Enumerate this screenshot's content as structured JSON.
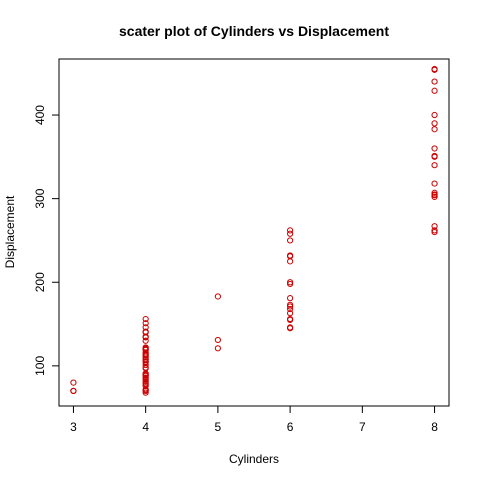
{
  "chart_data": {
    "type": "scatter",
    "title": "scater plot of Cylinders vs Displacement",
    "xlabel": "Cylinders",
    "ylabel": "Displacement",
    "xlim": [
      2.8,
      8.2
    ],
    "ylim": [
      52,
      467
    ],
    "x_ticks": [
      3,
      4,
      5,
      6,
      7,
      8
    ],
    "y_ticks": [
      100,
      200,
      300,
      400
    ],
    "grid": false,
    "point_color": "#cc0000",
    "points": [
      {
        "x": 3,
        "y": 80
      },
      {
        "x": 3,
        "y": 70
      },
      {
        "x": 3,
        "y": 70
      },
      {
        "x": 3,
        "y": 70
      },
      {
        "x": 4,
        "y": 68
      },
      {
        "x": 4,
        "y": 70
      },
      {
        "x": 4,
        "y": 71
      },
      {
        "x": 4,
        "y": 72
      },
      {
        "x": 4,
        "y": 76
      },
      {
        "x": 4,
        "y": 78
      },
      {
        "x": 4,
        "y": 79
      },
      {
        "x": 4,
        "y": 81
      },
      {
        "x": 4,
        "y": 83
      },
      {
        "x": 4,
        "y": 85
      },
      {
        "x": 4,
        "y": 86
      },
      {
        "x": 4,
        "y": 88
      },
      {
        "x": 4,
        "y": 89
      },
      {
        "x": 4,
        "y": 90
      },
      {
        "x": 4,
        "y": 91
      },
      {
        "x": 4,
        "y": 97
      },
      {
        "x": 4,
        "y": 98
      },
      {
        "x": 4,
        "y": 101
      },
      {
        "x": 4,
        "y": 104
      },
      {
        "x": 4,
        "y": 105
      },
      {
        "x": 4,
        "y": 107
      },
      {
        "x": 4,
        "y": 108
      },
      {
        "x": 4,
        "y": 110
      },
      {
        "x": 4,
        "y": 112
      },
      {
        "x": 4,
        "y": 113
      },
      {
        "x": 4,
        "y": 114
      },
      {
        "x": 4,
        "y": 116
      },
      {
        "x": 4,
        "y": 119
      },
      {
        "x": 4,
        "y": 120
      },
      {
        "x": 4,
        "y": 121
      },
      {
        "x": 4,
        "y": 122
      },
      {
        "x": 4,
        "y": 130
      },
      {
        "x": 4,
        "y": 134
      },
      {
        "x": 4,
        "y": 135
      },
      {
        "x": 4,
        "y": 140
      },
      {
        "x": 4,
        "y": 141
      },
      {
        "x": 4,
        "y": 146
      },
      {
        "x": 4,
        "y": 151
      },
      {
        "x": 4,
        "y": 156
      },
      {
        "x": 5,
        "y": 121
      },
      {
        "x": 5,
        "y": 131
      },
      {
        "x": 5,
        "y": 183
      },
      {
        "x": 6,
        "y": 145
      },
      {
        "x": 6,
        "y": 146
      },
      {
        "x": 6,
        "y": 155
      },
      {
        "x": 6,
        "y": 156
      },
      {
        "x": 6,
        "y": 163
      },
      {
        "x": 6,
        "y": 168
      },
      {
        "x": 6,
        "y": 171
      },
      {
        "x": 6,
        "y": 173
      },
      {
        "x": 6,
        "y": 181
      },
      {
        "x": 6,
        "y": 198
      },
      {
        "x": 6,
        "y": 200
      },
      {
        "x": 6,
        "y": 225
      },
      {
        "x": 6,
        "y": 231
      },
      {
        "x": 6,
        "y": 232
      },
      {
        "x": 6,
        "y": 250
      },
      {
        "x": 6,
        "y": 258
      },
      {
        "x": 6,
        "y": 262
      },
      {
        "x": 8,
        "y": 260
      },
      {
        "x": 8,
        "y": 262
      },
      {
        "x": 8,
        "y": 267
      },
      {
        "x": 8,
        "y": 302
      },
      {
        "x": 8,
        "y": 304
      },
      {
        "x": 8,
        "y": 305
      },
      {
        "x": 8,
        "y": 307
      },
      {
        "x": 8,
        "y": 318
      },
      {
        "x": 8,
        "y": 340
      },
      {
        "x": 8,
        "y": 350
      },
      {
        "x": 8,
        "y": 351
      },
      {
        "x": 8,
        "y": 360
      },
      {
        "x": 8,
        "y": 383
      },
      {
        "x": 8,
        "y": 390
      },
      {
        "x": 8,
        "y": 400
      },
      {
        "x": 8,
        "y": 429
      },
      {
        "x": 8,
        "y": 440
      },
      {
        "x": 8,
        "y": 454
      },
      {
        "x": 8,
        "y": 455
      }
    ]
  }
}
